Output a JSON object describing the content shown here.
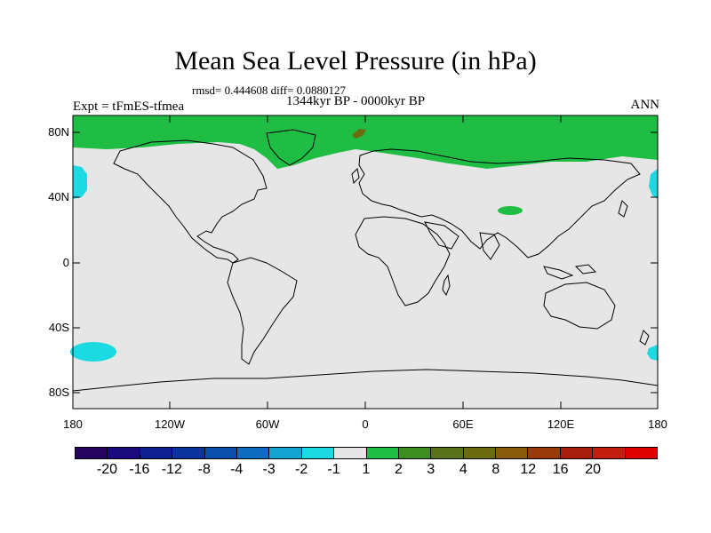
{
  "title": "Mean Sea Level Pressure (in hPa)",
  "stats": "rmsd= 0.444608 diff= 0.0880127",
  "period": "1344kyr BP - 0000kyr BP",
  "experiment": "Expt = tFmES-tfmea",
  "season": "ANN",
  "map": {
    "lat_labels": [
      "80N",
      "40N",
      "0",
      "40S",
      "80S"
    ],
    "lon_labels": [
      "180",
      "120W",
      "60W",
      "0",
      "60E",
      "120E",
      "180"
    ]
  },
  "colorbar": {
    "colors": [
      "#24045e",
      "#1a0a7c",
      "#0e1f8f",
      "#0a339b",
      "#0b4fac",
      "#0e6cc0",
      "#14a4d2",
      "#1dd9e1",
      "#e6e6e6",
      "#1fbd44",
      "#3e8d20",
      "#58731b",
      "#6b6b10",
      "#8a5b0c",
      "#9a3a0a",
      "#a81e0c",
      "#c41e10",
      "#e00000"
    ],
    "labels": [
      "-20",
      "-16",
      "-12",
      "-8",
      "-4",
      "-3",
      "-2",
      "-1",
      "1",
      "2",
      "3",
      "4",
      "8",
      "12",
      "16",
      "20"
    ]
  }
}
